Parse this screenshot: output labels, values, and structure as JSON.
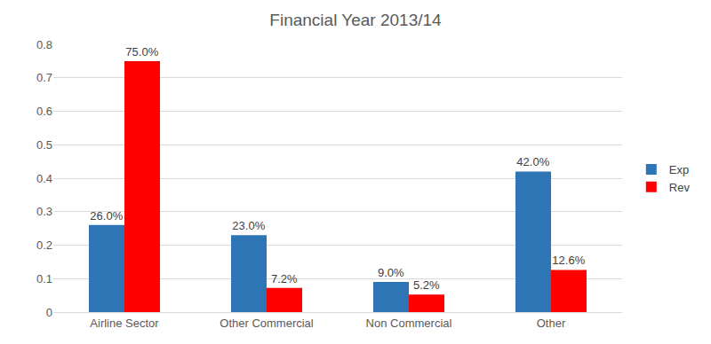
{
  "chart_data": {
    "type": "bar",
    "title": "Financial Year 2013/14",
    "categories": [
      "Airline Sector",
      "Other Commercial",
      "Non Commercial",
      "Other"
    ],
    "series": [
      {
        "name": "Exp",
        "color": "#2e75b6",
        "values": [
          0.26,
          0.23,
          0.09,
          0.42
        ],
        "value_labels": [
          "26.0%",
          "23.0%",
          "9.0%",
          "42.0%"
        ]
      },
      {
        "name": "Rev",
        "color": "#ff0000",
        "values": [
          0.75,
          0.072,
          0.052,
          0.126
        ],
        "value_labels": [
          "75.0%",
          "7.2%",
          "5.2%",
          "12.6%"
        ]
      }
    ],
    "ylim": [
      0,
      0.8
    ],
    "yticks": [
      0,
      0.1,
      0.2,
      0.3,
      0.4,
      0.5,
      0.6,
      0.7,
      0.8
    ],
    "grid": true,
    "legend": "right",
    "data_labels": true
  }
}
